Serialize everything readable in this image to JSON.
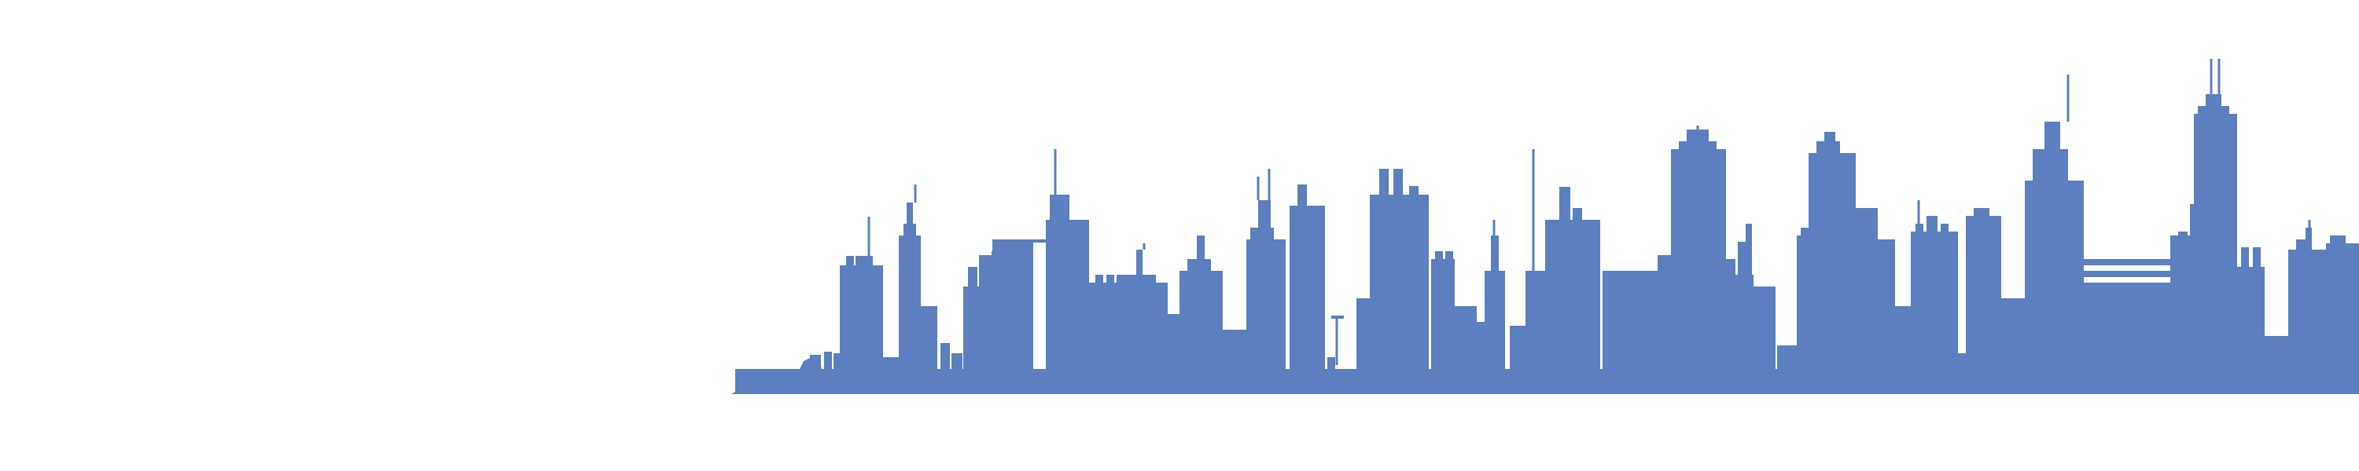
{
  "scene": {
    "background_color": "#ffffff",
    "skyline_color": "#5b7fbf",
    "icon": "city-skyline-silhouette"
  }
}
